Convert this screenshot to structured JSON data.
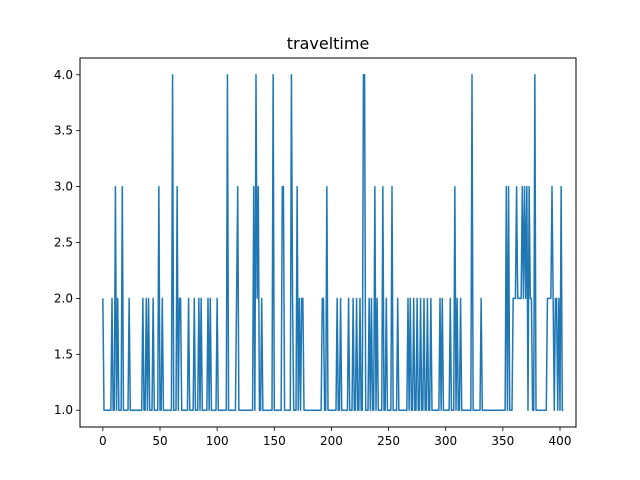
{
  "chart_data": {
    "type": "line",
    "title": "traveltime",
    "xlabel": "",
    "ylabel": "",
    "xlim": [
      -20,
      414
    ],
    "ylim": [
      0.85,
      4.15
    ],
    "x_ticks": [
      0,
      50,
      100,
      150,
      200,
      250,
      300,
      350,
      400
    ],
    "y_ticks": [
      1.0,
      1.5,
      2.0,
      2.5,
      3.0,
      3.5,
      4.0
    ],
    "grid": false,
    "legend": false,
    "series": [
      {
        "color": "#1f77b4",
        "values": [
          2,
          1,
          1,
          1,
          1,
          1,
          1,
          1,
          2,
          1,
          1,
          3,
          1,
          2,
          1,
          1,
          1,
          3,
          1,
          1,
          1,
          1,
          1,
          2,
          1,
          1,
          1,
          1,
          1,
          1,
          1,
          1,
          1,
          1,
          1,
          2,
          1,
          1,
          2,
          1,
          2,
          1,
          1,
          1,
          2,
          1,
          1,
          1,
          1,
          3,
          1,
          1,
          2,
          1,
          1,
          1,
          1,
          1,
          1,
          1,
          1,
          4,
          1,
          1,
          1,
          3,
          1,
          2,
          2,
          1,
          1,
          1,
          1,
          1,
          1,
          2,
          1,
          1,
          1,
          1,
          2,
          1,
          1,
          1,
          2,
          1,
          2,
          1,
          1,
          1,
          1,
          1,
          2,
          1,
          2,
          1,
          1,
          1,
          1,
          1,
          2,
          1,
          1,
          1,
          1,
          1,
          1,
          1,
          1,
          4,
          1,
          1,
          1,
          1,
          1,
          1,
          1,
          2,
          3,
          1,
          1,
          1,
          1,
          1,
          1,
          1,
          1,
          1,
          1,
          1,
          1,
          1,
          3,
          1,
          4,
          2,
          3,
          1,
          1,
          2,
          1,
          1,
          1,
          1,
          1,
          1,
          1,
          1,
          1,
          4,
          1,
          1,
          1,
          1,
          1,
          1,
          1,
          3,
          3,
          1,
          1,
          1,
          1,
          1,
          1,
          4,
          2,
          1,
          1,
          1,
          3,
          1,
          2,
          1,
          2,
          2,
          1,
          1,
          1,
          1,
          1,
          1,
          1,
          1,
          1,
          1,
          1,
          1,
          1,
          1,
          1,
          1,
          2,
          2,
          1,
          1,
          3,
          1,
          1,
          1,
          1,
          1,
          1,
          1,
          1,
          2,
          1,
          1,
          2,
          1,
          1,
          1,
          1,
          1,
          1,
          2,
          1,
          1,
          1,
          2,
          1,
          1,
          2,
          1,
          1,
          2,
          1,
          1,
          4,
          4,
          1,
          1,
          1,
          2,
          1,
          2,
          1,
          1,
          3,
          1,
          2,
          1,
          1,
          1,
          1,
          3,
          1,
          1,
          2,
          1,
          1,
          1,
          1,
          3,
          1,
          1,
          1,
          1,
          2,
          1,
          1,
          1,
          1,
          1,
          1,
          1,
          1,
          2,
          1,
          2,
          1,
          1,
          2,
          1,
          1,
          2,
          1,
          1,
          2,
          1,
          1,
          2,
          1,
          1,
          2,
          1,
          1,
          2,
          1,
          1,
          1,
          1,
          1,
          1,
          1,
          2,
          1,
          2,
          1,
          1,
          1,
          1,
          1,
          1,
          2,
          1,
          1,
          1,
          3,
          1,
          2,
          1,
          1,
          2,
          1,
          1,
          1,
          1,
          1,
          1,
          1,
          1,
          1,
          4,
          1,
          1,
          1,
          1,
          1,
          1,
          1,
          2,
          1,
          1,
          1,
          1,
          1,
          1,
          1,
          1,
          1,
          1,
          1,
          1,
          1,
          1,
          1,
          1,
          1,
          1,
          1,
          1,
          1,
          3,
          1,
          3,
          1,
          1,
          1,
          2,
          2,
          2,
          3,
          2,
          2,
          2,
          2,
          3,
          2,
          3,
          2,
          3,
          1,
          3,
          2,
          2,
          1,
          1,
          4,
          1,
          1,
          1,
          1,
          1,
          1,
          1,
          1,
          1,
          1,
          2,
          2,
          2,
          2,
          3,
          2,
          1,
          2,
          2,
          1,
          2,
          1,
          3,
          1,
          1
        ]
      }
    ]
  }
}
